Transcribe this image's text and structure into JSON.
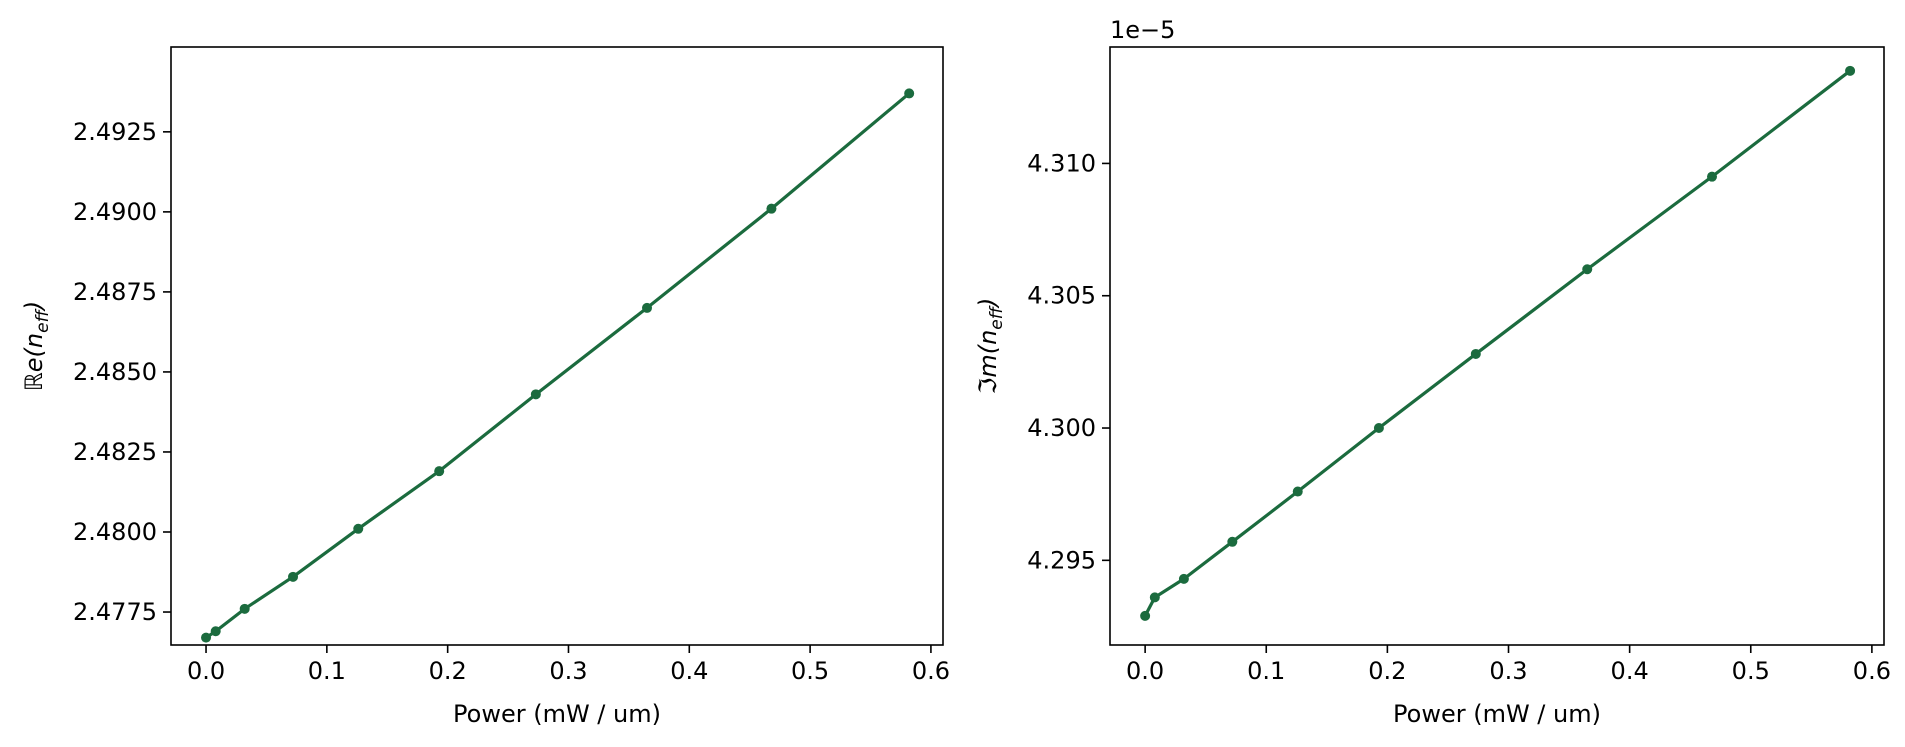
{
  "figure": {
    "line_color": "#1b6b3e",
    "marker_color": "#1b6b3e"
  },
  "chart_data": [
    {
      "type": "line",
      "title": "",
      "xlabel": "Power (mW / um)",
      "ylabel": "ℝe(n_eff)",
      "ylabel_parts": {
        "main": "ℝe(n",
        "sub": "eff",
        "close": ")"
      },
      "xlim": [
        -0.029,
        0.61
      ],
      "ylim": [
        2.47647,
        2.49515
      ],
      "xticks": [
        0.0,
        0.1,
        0.2,
        0.3,
        0.4,
        0.5,
        0.6
      ],
      "xtick_labels": [
        "0.0",
        "0.1",
        "0.2",
        "0.3",
        "0.4",
        "0.5",
        "0.6"
      ],
      "yticks": [
        2.4775,
        2.48,
        2.4825,
        2.485,
        2.4875,
        2.49,
        2.4925
      ],
      "ytick_labels": [
        "2.4775",
        "2.4800",
        "2.4825",
        "2.4850",
        "2.4875",
        "2.4900",
        "2.4925"
      ],
      "offset_text": "",
      "grid": false,
      "series": [
        {
          "color": "#1b6b3e",
          "marker": "circle",
          "x": [
            0.0,
            0.008,
            0.032,
            0.072,
            0.126,
            0.193,
            0.273,
            0.365,
            0.468,
            0.582
          ],
          "y": [
            2.4767,
            2.4769,
            2.4776,
            2.4786,
            2.4801,
            2.4819,
            2.4843,
            2.487,
            2.4901,
            2.4937
          ]
        }
      ]
    },
    {
      "type": "line",
      "title": "",
      "xlabel": "Power (mW / um)",
      "ylabel": "ℑm(n_eff)",
      "ylabel_parts": {
        "main": "ℑm(n",
        "sub": "eff",
        "close": ")"
      },
      "xlim": [
        -0.029,
        0.61
      ],
      "ylim": [
        4.2918,
        4.3144
      ],
      "xticks": [
        0.0,
        0.1,
        0.2,
        0.3,
        0.4,
        0.5,
        0.6
      ],
      "xtick_labels": [
        "0.0",
        "0.1",
        "0.2",
        "0.3",
        "0.4",
        "0.5",
        "0.6"
      ],
      "yticks": [
        4.295,
        4.3,
        4.305,
        4.31
      ],
      "ytick_labels": [
        "4.295",
        "4.300",
        "4.305",
        "4.310"
      ],
      "offset_text": "1e−5",
      "grid": false,
      "series": [
        {
          "color": "#1b6b3e",
          "marker": "circle",
          "x": [
            0.0,
            0.008,
            0.032,
            0.072,
            0.126,
            0.193,
            0.273,
            0.365,
            0.468,
            0.582
          ],
          "y": [
            4.2929,
            4.2936,
            4.2943,
            4.2957,
            4.2976,
            4.3,
            4.3028,
            4.306,
            4.3095,
            4.3135
          ]
        }
      ]
    }
  ]
}
